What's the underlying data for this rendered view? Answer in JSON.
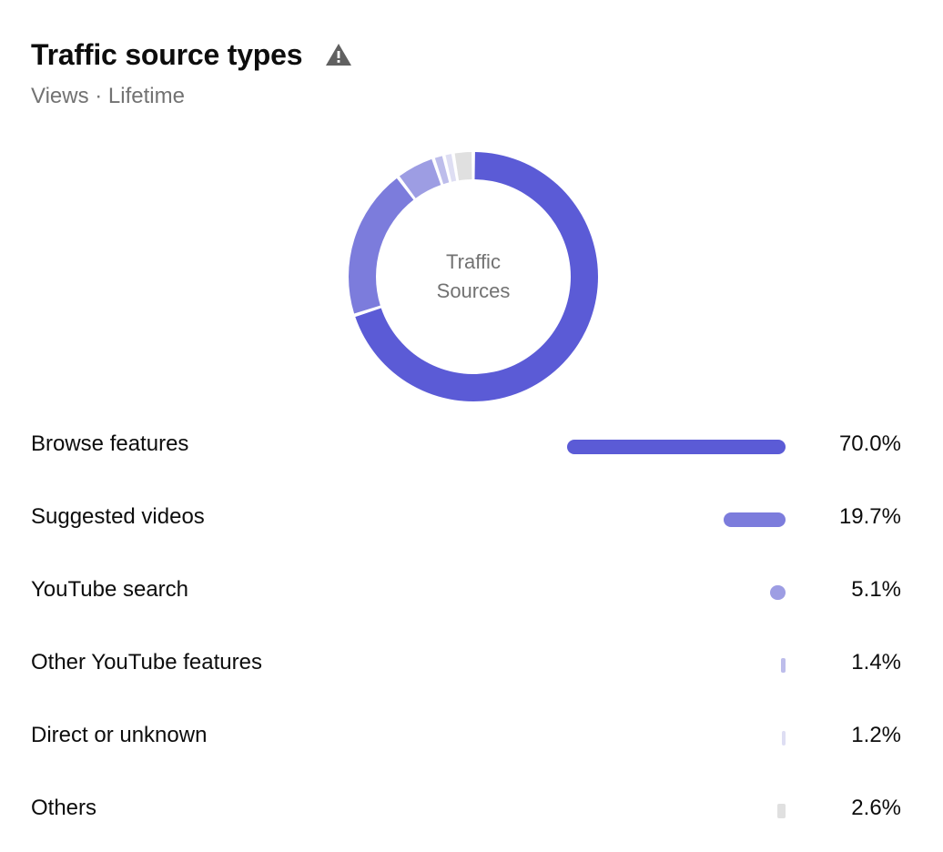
{
  "header": {
    "title": "Traffic source types",
    "subtitle": "Views · Lifetime",
    "warning_icon": "warning-icon"
  },
  "donut": {
    "center_line1": "Traffic",
    "center_line2": "Sources"
  },
  "chart_data": {
    "type": "pie",
    "title": "Traffic source types",
    "subtitle": "Views · Lifetime",
    "center_label": "Traffic Sources",
    "categories": [
      "Browse features",
      "Suggested videos",
      "YouTube search",
      "Other YouTube features",
      "Direct or unknown",
      "Others"
    ],
    "values": [
      70.0,
      19.7,
      5.1,
      1.4,
      1.2,
      2.6
    ],
    "value_labels": [
      "70.0%",
      "19.7%",
      "5.1%",
      "1.4%",
      "1.2%",
      "2.6%"
    ],
    "colors": [
      "#5b5bd6",
      "#7c7cdc",
      "#9d9de3",
      "#bdbdeb",
      "#dedef3",
      "#e0e0e0"
    ],
    "unit": "%",
    "legend": "bottom"
  }
}
